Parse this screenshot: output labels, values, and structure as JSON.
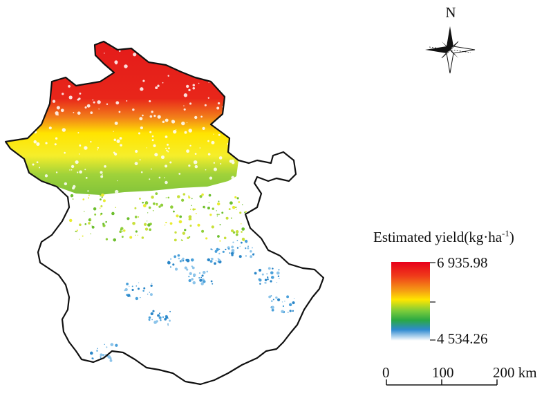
{
  "north_label": "N",
  "legend": {
    "title_text": "Estimated yield(kg·ha",
    "title_sup": "-1",
    "title_close": ")",
    "max_label": "6 935.98",
    "min_label": "4 534.26",
    "gradient_colors": [
      "#e8001b",
      "#f26b16",
      "#ffe600",
      "#c9e24f",
      "#3ab53a",
      "#2f8fd0",
      "#ffffff"
    ]
  },
  "scale_bar": {
    "labels": [
      "0",
      "100",
      "200 km"
    ]
  },
  "colors": {
    "boundary": "#111111",
    "high": "#e61c1c",
    "upper_mid": "#f07a1a",
    "mid": "#ffe800",
    "lower_mid": "#6dbf2e",
    "low": "#2a86c8"
  }
}
